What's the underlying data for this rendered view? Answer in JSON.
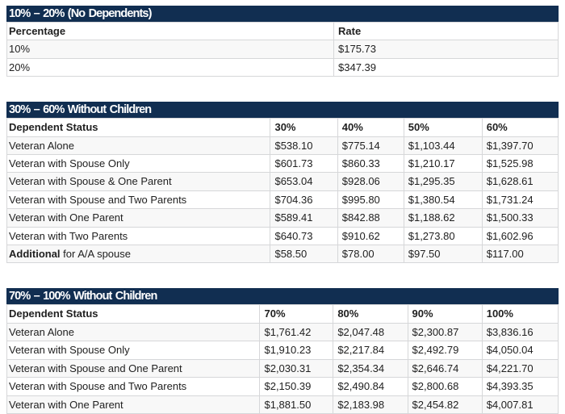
{
  "colors": {
    "caption_bg": "#112e51",
    "caption_text": "#ffffff",
    "border": "#d6d7d9",
    "stripe": "#f8f8f8",
    "text": "#212121"
  },
  "tables": [
    {
      "caption": "10% – 20% (No Dependents)",
      "headers": [
        "Percentage",
        "Rate"
      ],
      "rows": [
        {
          "label": "10%",
          "values": [
            "$175.73"
          ]
        },
        {
          "label": "20%",
          "values": [
            "$347.39"
          ]
        }
      ]
    },
    {
      "caption": "30% – 60% Without Children",
      "headers": [
        "Dependent Status",
        "30%",
        "40%",
        "50%",
        "60%"
      ],
      "rows": [
        {
          "label": "Veteran Alone",
          "values": [
            "$538.10",
            "$775.14",
            "$1,103.44",
            "$1,397.70"
          ]
        },
        {
          "label": "Veteran with Spouse Only",
          "values": [
            "$601.73",
            "$860.33",
            "$1,210.17",
            "$1,525.98"
          ]
        },
        {
          "label": "Veteran with Spouse & One Parent",
          "values": [
            "$653.04",
            "$928.06",
            "$1,295.35",
            "$1,628.61"
          ]
        },
        {
          "label": "Veteran with Spouse and Two Parents",
          "values": [
            "$704.36",
            "$995.80",
            "$1,380.54",
            "$1,731.24"
          ]
        },
        {
          "label": "Veteran with One Parent",
          "values": [
            "$589.41",
            "$842.88",
            "$1,188.62",
            "$1,500.33"
          ]
        },
        {
          "label": "Veteran with Two Parents",
          "values": [
            "$640.73",
            "$910.62",
            "$1,273.80",
            "$1,602.96"
          ]
        },
        {
          "label_bold": "Additional",
          "label_rest": " for A/A spouse",
          "values": [
            "$58.50",
            "$78.00",
            "$97.50",
            "$117.00"
          ]
        }
      ]
    },
    {
      "caption": "70% – 100% Without Children",
      "headers": [
        "Dependent Status",
        "70%",
        "80%",
        "90%",
        "100%"
      ],
      "rows": [
        {
          "label": "Veteran Alone",
          "values": [
            "$1,761.42",
            "$2,047.48",
            "$2,300.87",
            "$3,836.16"
          ]
        },
        {
          "label": "Veteran with Spouse Only",
          "values": [
            "$1,910.23",
            "$2,217.84",
            "$2,492.79",
            "$4,050.04"
          ]
        },
        {
          "label": "Veteran with Spouse and One Parent",
          "values": [
            "$2,030.31",
            "$2,354.34",
            "$2,646.74",
            "$4,221.70"
          ]
        },
        {
          "label": "Veteran with Spouse and Two Parents",
          "values": [
            "$2,150.39",
            "$2,490.84",
            "$2,800.68",
            "$4,393.35"
          ]
        },
        {
          "label": "Veteran with One Parent",
          "values": [
            "$1,881.50",
            "$2,183.98",
            "$2,454.82",
            "$4,007.81"
          ]
        }
      ]
    }
  ]
}
